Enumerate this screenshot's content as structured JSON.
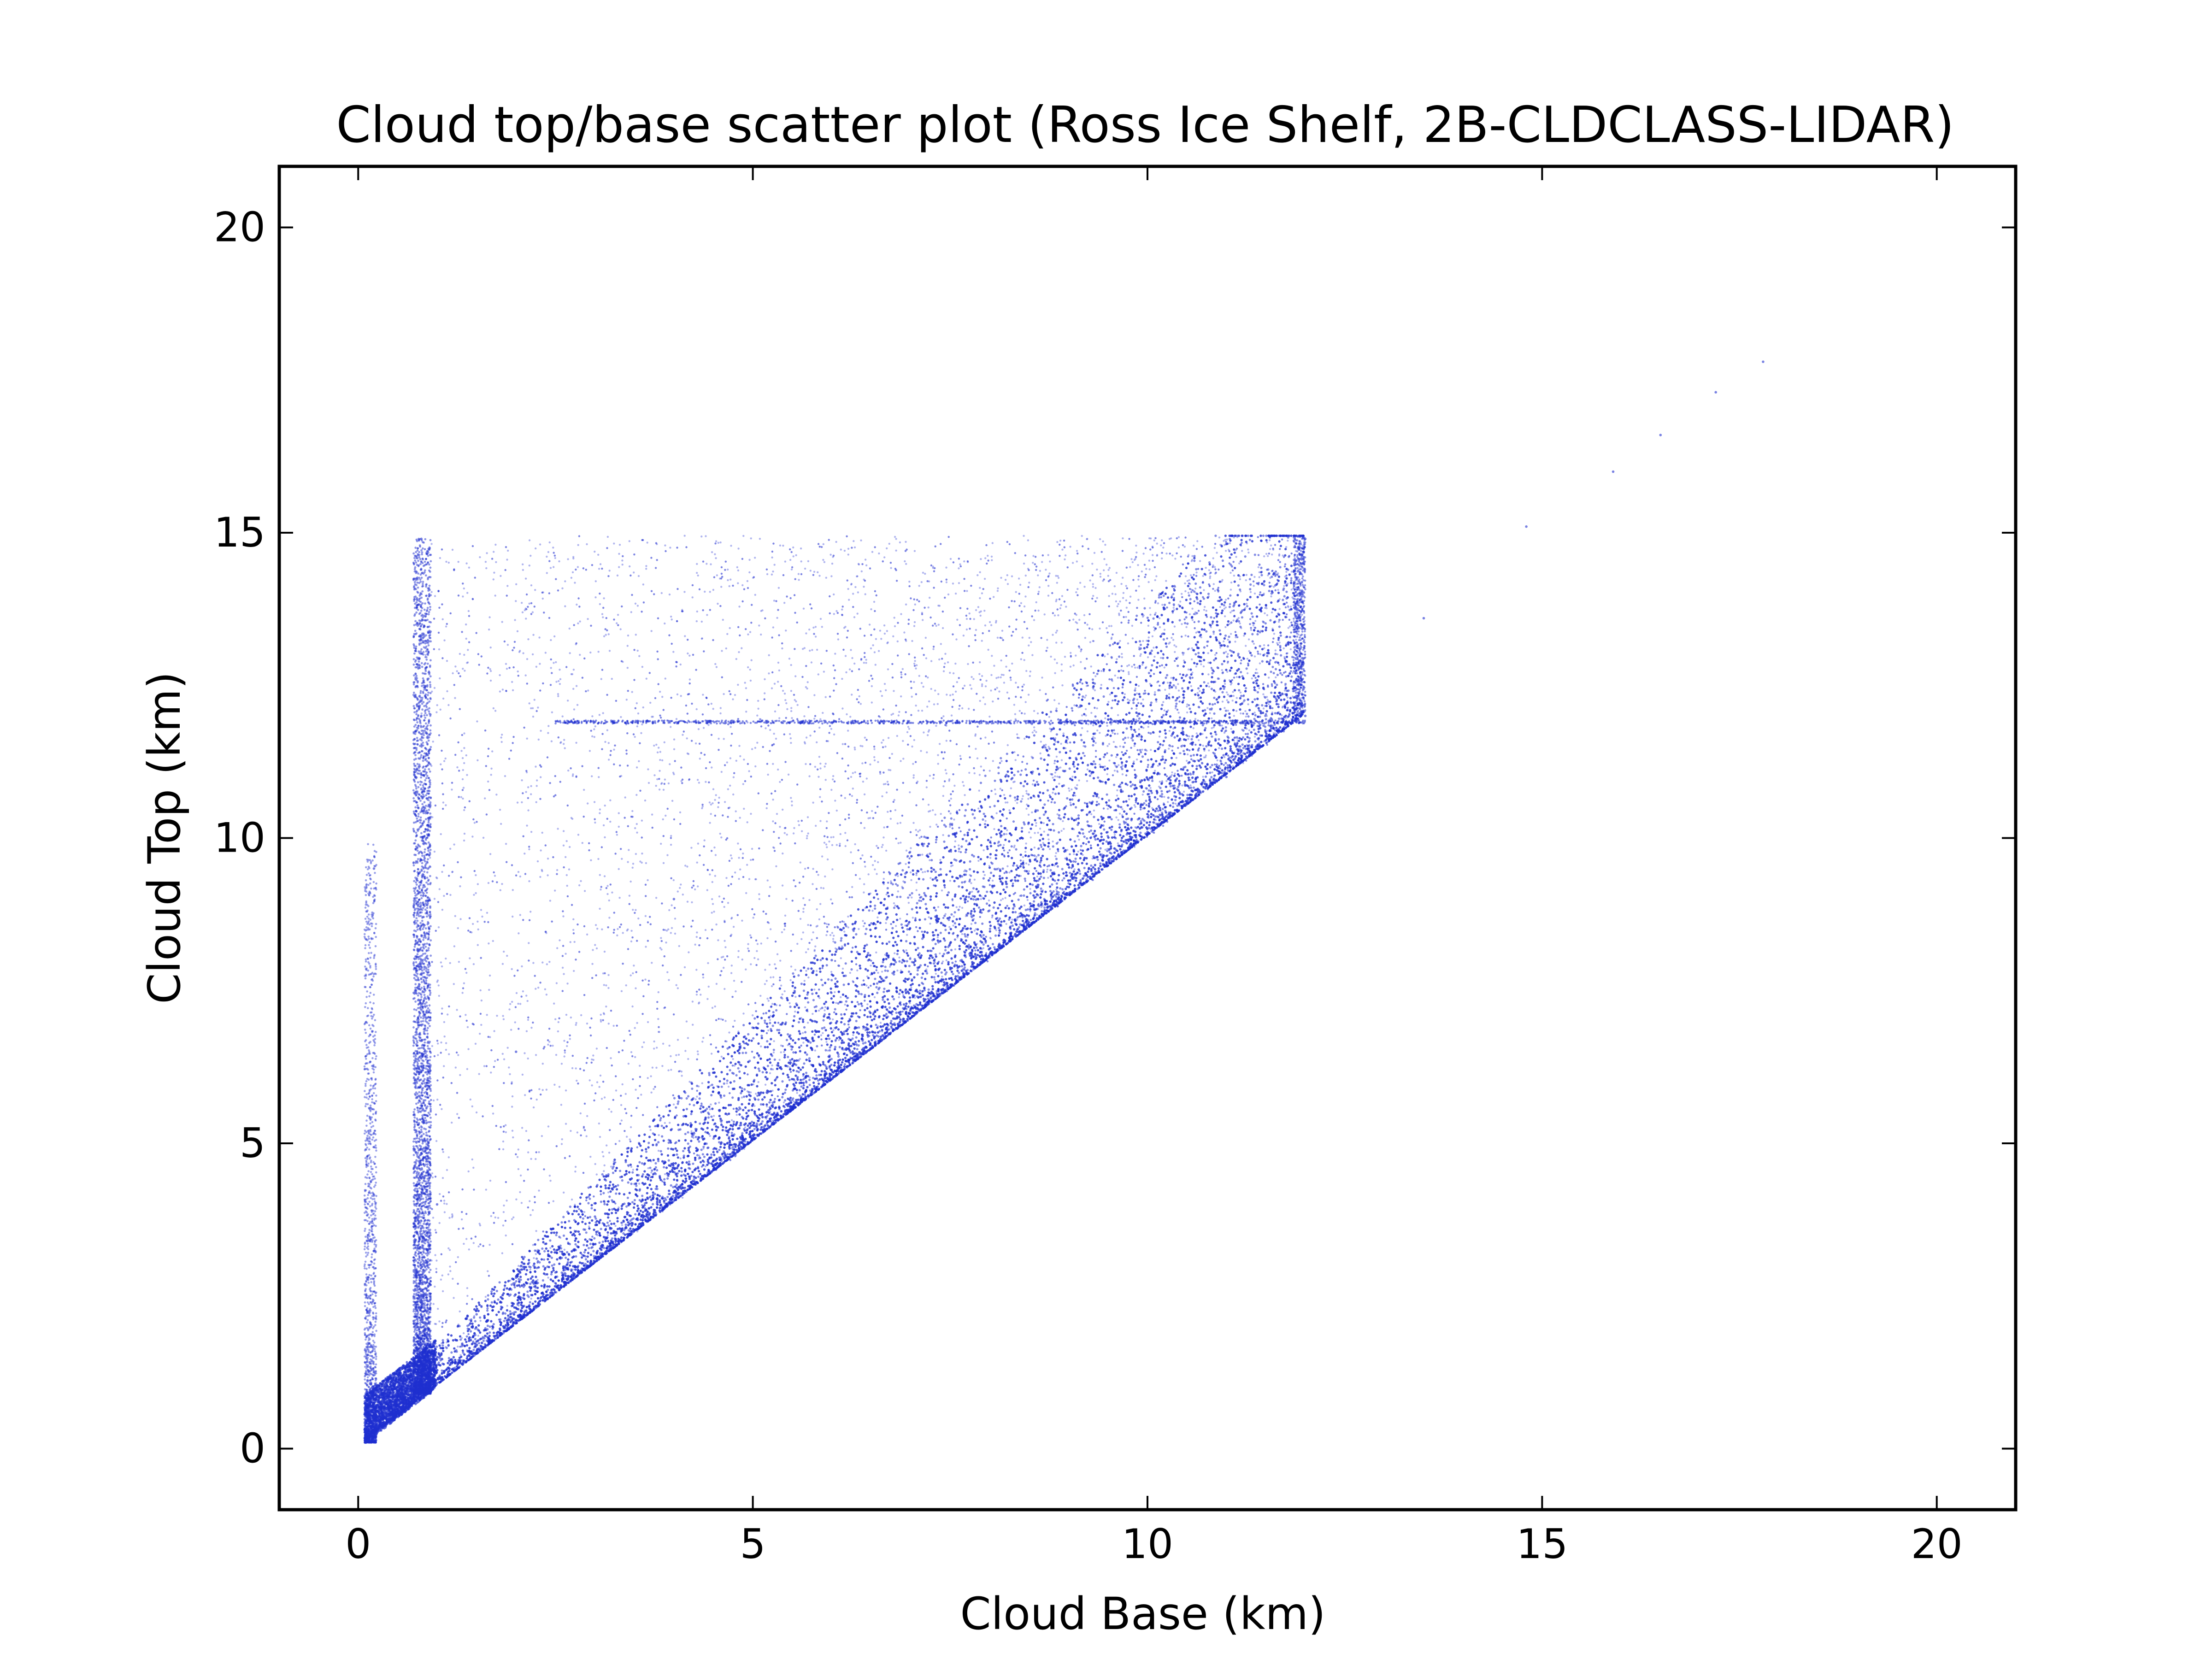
{
  "chart_data": {
    "type": "scatter",
    "title": "Cloud top/base scatter plot (Ross Ice Shelf, 2B-CLDCLASS-LIDAR)",
    "xlabel": "Cloud Base (km)",
    "ylabel": "Cloud Top (km)",
    "xlim": [
      -1,
      21
    ],
    "ylim": [
      -1,
      21
    ],
    "xticks": [
      0,
      5,
      10,
      15,
      20
    ],
    "yticks": [
      0,
      5,
      10,
      15,
      20
    ],
    "xtick_labels": [
      "0",
      "5",
      "10",
      "15",
      "20"
    ],
    "ytick_labels": [
      "0",
      "5",
      "10",
      "15",
      "20"
    ],
    "grid": false,
    "legend": "none",
    "marker_color": "#1f2fd0",
    "series": [
      {
        "values_description_points": [
          [
            0.1,
            0.1
          ],
          [
            0.2,
            0.3
          ],
          [
            0.3,
            0.6
          ],
          [
            0.5,
            0.8
          ],
          [
            0.8,
            1.2
          ],
          [
            1.0,
            1.5
          ],
          [
            1.5,
            2.2
          ],
          [
            2.0,
            2.8
          ],
          [
            3.0,
            3.8
          ],
          [
            4.0,
            4.6
          ],
          [
            5.0,
            5.3
          ],
          [
            6.0,
            6.2
          ],
          [
            7.0,
            7.2
          ],
          [
            8.0,
            8.1
          ],
          [
            9.0,
            9.1
          ],
          [
            10.0,
            10.1
          ],
          [
            11.0,
            11.0
          ],
          [
            12.0,
            12.0
          ],
          [
            12.0,
            14.9
          ],
          [
            0.8,
            14.9
          ],
          [
            0.8,
            12.0
          ],
          [
            3.0,
            11.9
          ],
          [
            8.0,
            11.9
          ],
          [
            0.2,
            9.5
          ],
          [
            4.0,
            9.0
          ],
          [
            6.0,
            8.0
          ],
          [
            2.0,
            6.5
          ],
          [
            1.0,
            4.0
          ],
          [
            0.8,
            8.0
          ],
          [
            13.5,
            13.6
          ],
          [
            14.8,
            15.1
          ],
          [
            15.9,
            16.0
          ],
          [
            16.5,
            16.6
          ],
          [
            17.2,
            17.3
          ],
          [
            17.8,
            17.8
          ]
        ]
      }
    ]
  }
}
